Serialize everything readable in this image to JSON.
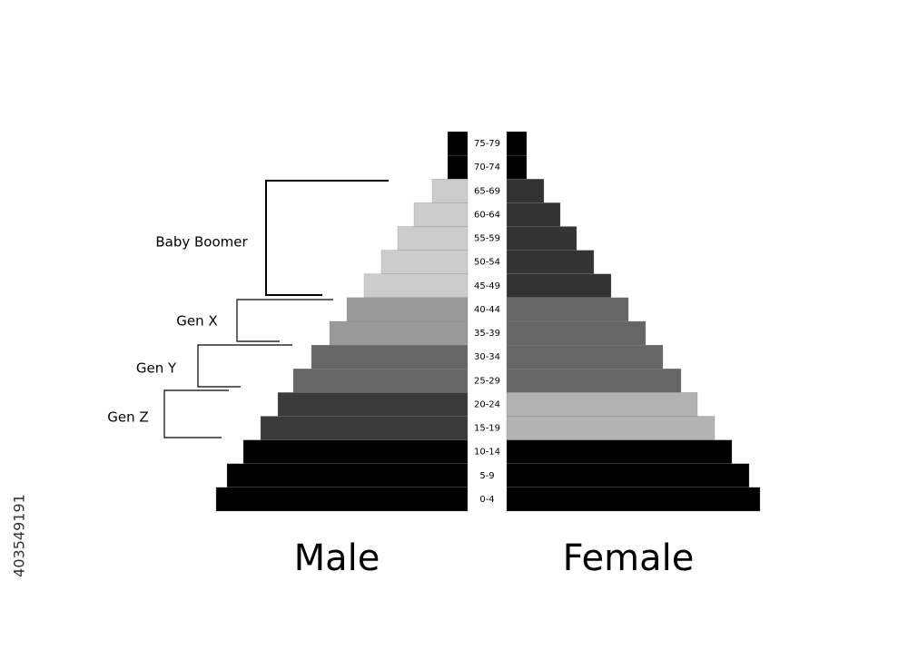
{
  "chart_data": {
    "type": "pyramid",
    "categories": [
      "75-79",
      "70-74",
      "65-69",
      "60-64",
      "55-59",
      "50-54",
      "45-49",
      "40-44",
      "35-39",
      "30-34",
      "25-29",
      "20-24",
      "15-19",
      "10-14",
      "5-9",
      "0-4"
    ],
    "series": [
      {
        "name": "Male",
        "values": [
          22,
          22,
          39,
          59,
          77,
          95,
          114,
          133,
          152,
          172,
          192,
          209,
          228,
          247,
          265,
          277
        ],
        "colors": [
          "#000000",
          "#000000",
          "#cccccc",
          "#cccccc",
          "#cccccc",
          "#cccccc",
          "#cccccc",
          "#999999",
          "#999999",
          "#666666",
          "#666666",
          "#3a3a3a",
          "#3a3a3a",
          "#000000",
          "#000000",
          "#000000"
        ]
      },
      {
        "name": "Female",
        "values": [
          22,
          22,
          41,
          59,
          77,
          96,
          115,
          134,
          153,
          172,
          192,
          210,
          229,
          248,
          267,
          279
        ],
        "colors": [
          "#000000",
          "#000000",
          "#333333",
          "#333333",
          "#333333",
          "#333333",
          "#333333",
          "#666666",
          "#666666",
          "#666666",
          "#666666",
          "#b3b3b3",
          "#b3b3b3",
          "#000000",
          "#000000",
          "#000000"
        ]
      }
    ],
    "xlim": [
      0,
      280
    ],
    "annotations": [
      "Baby Boomer",
      "Gen X",
      "Gen Y",
      "Gen Z"
    ],
    "stock_id": "403549191"
  }
}
